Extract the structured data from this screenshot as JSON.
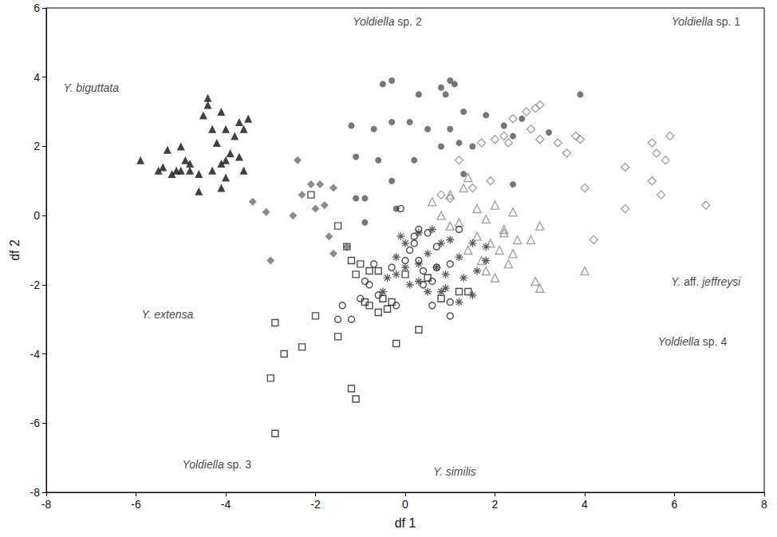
{
  "chart_data": {
    "type": "scatter",
    "xlabel": "df 1",
    "ylabel": "df 2",
    "xlim": [
      -8,
      8
    ],
    "ylim": [
      -8,
      6
    ],
    "xticks": [
      -8,
      -6,
      -4,
      -2,
      0,
      2,
      4,
      6,
      8
    ],
    "yticks": [
      -8,
      -6,
      -4,
      -2,
      0,
      2,
      4,
      6
    ],
    "grid": false,
    "series": [
      {
        "name": "Y. biguttata",
        "color": "#111111",
        "marker": "filled-triangle",
        "x": [
          -5.9,
          -5.5,
          -5.4,
          -5.2,
          -5.1,
          -5.0,
          -4.9,
          -4.8,
          -4.8,
          -5.3,
          -5.0,
          -4.6,
          -4.5,
          -4.4,
          -4.4,
          -4.3,
          -4.1,
          -4.2,
          -4.0,
          -4.3,
          -4.0,
          -3.9,
          -4.0,
          -3.7,
          -3.8,
          -3.6,
          -3.7,
          -3.6,
          -4.1,
          -4.6,
          -4.1,
          -3.5
        ],
        "y": [
          1.6,
          1.3,
          1.4,
          1.2,
          1.3,
          1.3,
          1.6,
          1.3,
          1.5,
          1.9,
          2.0,
          1.2,
          2.9,
          3.4,
          3.2,
          1.3,
          3.0,
          2.1,
          2.5,
          2.5,
          1.6,
          1.8,
          1.1,
          2.7,
          2.3,
          2.5,
          1.7,
          1.3,
          0.8,
          0.7,
          1.5,
          2.8
        ]
      },
      {
        "name": "Yoldiella sp. 2",
        "color": "#555555",
        "marker": "filled-circle",
        "x": [
          -0.5,
          -0.3,
          0.8,
          1.0,
          1.1,
          0.9,
          0.3,
          0.1,
          -0.3,
          -1.2,
          -0.7,
          0.5,
          0.8,
          1.0,
          1.3,
          1.8,
          2.2,
          2.6,
          2.4,
          3.2,
          1.5,
          -1.1,
          -0.6,
          0.2,
          -0.3,
          -1.1,
          -0.9,
          -0.9,
          -0.2,
          1.3,
          2.4,
          3.9,
          1.2
        ],
        "y": [
          3.8,
          3.9,
          3.7,
          3.9,
          3.8,
          3.5,
          3.5,
          2.7,
          2.7,
          2.6,
          2.5,
          2.5,
          2.0,
          2.5,
          3.0,
          2.9,
          2.6,
          2.8,
          2.3,
          2.4,
          2.0,
          1.7,
          1.6,
          1.6,
          1.0,
          0.5,
          0.5,
          -0.2,
          0.2,
          1.2,
          0.9,
          3.5,
          2.1
        ]
      },
      {
        "name": "Yoldiella sp. 1",
        "color": "#8c8c8c",
        "marker": "open-diamond",
        "x": [
          1.7,
          2.0,
          2.2,
          2.4,
          2.3,
          2.7,
          2.9,
          3.0,
          2.8,
          3.0,
          3.4,
          3.6,
          3.8,
          3.9,
          1.2,
          1.0,
          0.8,
          4.9,
          5.5,
          5.6,
          5.5,
          5.8,
          5.9,
          6.7,
          4.9,
          5.7,
          4.0,
          4.2,
          1.9,
          1.5
        ],
        "y": [
          2.1,
          2.2,
          2.3,
          2.8,
          2.1,
          3.0,
          3.1,
          3.2,
          2.5,
          2.2,
          2.1,
          1.8,
          2.3,
          2.2,
          1.6,
          0.5,
          0.6,
          1.4,
          2.1,
          1.8,
          1.0,
          1.6,
          2.3,
          0.3,
          0.2,
          0.6,
          0.8,
          -0.7,
          1.0,
          0.8
        ]
      },
      {
        "name": "Y. extensa",
        "color": "#6e6e6e",
        "marker": "filled-diamond",
        "x": [
          -3.4,
          -3.1,
          -3.0,
          -2.5,
          -2.4,
          -2.3,
          -2.1,
          -1.9,
          -1.6,
          -2.0,
          -1.7,
          -1.6,
          -1.3,
          -1.8
        ],
        "y": [
          0.4,
          0.1,
          -1.3,
          0.0,
          1.6,
          0.6,
          0.9,
          0.9,
          0.8,
          0.2,
          -0.6,
          -1.1,
          -0.9,
          0.3
        ]
      },
      {
        "name": "Y. aff. jeffreysi",
        "color": "#8c8c8c",
        "marker": "open-triangle",
        "x": [
          1.0,
          1.3,
          1.4,
          2.0,
          2.4,
          1.8,
          2.2,
          2.5,
          1.9,
          1.6,
          1.0,
          0.8,
          0.6,
          1.4,
          1.7,
          2.1,
          2.4,
          2.3,
          2.0,
          1.8,
          2.9,
          3.0,
          2.8,
          3.0,
          1.6,
          2.2,
          4.0,
          1.2
        ],
        "y": [
          0.6,
          0.8,
          1.1,
          0.3,
          0.1,
          -0.1,
          -0.4,
          -0.7,
          -0.8,
          -0.6,
          -0.3,
          0.0,
          0.4,
          -1.0,
          -1.3,
          -1.0,
          -1.1,
          -1.4,
          -1.8,
          -1.6,
          -1.9,
          -2.1,
          -0.7,
          -0.3,
          0.2,
          -0.5,
          -1.6,
          -0.2
        ]
      },
      {
        "name": "Yoldiella sp. 3",
        "color": "#222222",
        "marker": "open-square",
        "x": [
          -2.1,
          -1.5,
          -1.3,
          -1.2,
          -1.0,
          -0.8,
          -0.6,
          -1.1,
          -0.9,
          -0.8,
          -0.5,
          -0.3,
          -0.4,
          0.0,
          -0.2,
          0.3,
          0.8,
          1.4,
          1.2,
          -1.5,
          -2.0,
          -2.3,
          -2.7,
          -2.9,
          -3.0,
          -2.9,
          -1.2,
          -1.1,
          -0.6,
          0.5
        ],
        "y": [
          0.6,
          -0.3,
          -0.9,
          -1.3,
          -1.4,
          -1.6,
          -1.6,
          -1.7,
          -2.5,
          -2.6,
          -2.4,
          -2.5,
          -2.7,
          -1.7,
          -3.7,
          -3.3,
          -2.4,
          -2.2,
          -2.2,
          -3.5,
          -2.9,
          -3.8,
          -4.0,
          -3.1,
          -4.7,
          -6.3,
          -5.0,
          -5.3,
          -2.8,
          -1.8
        ]
      },
      {
        "name": "Y. similis",
        "color": "#222222",
        "marker": "open-circle",
        "x": [
          -0.1,
          0.3,
          0.5,
          0.7,
          0.2,
          0.0,
          0.3,
          0.4,
          0.6,
          0.4,
          0.7,
          0.1,
          0.2,
          -0.3,
          -0.7,
          -0.9,
          -0.8,
          -0.6,
          -0.2,
          -1.0,
          -1.4,
          -1.2,
          -1.5,
          1.0,
          1.0,
          0.6,
          1.0,
          1.2
        ],
        "y": [
          0.2,
          -0.4,
          -0.5,
          -0.9,
          -0.8,
          -1.3,
          -1.3,
          -1.6,
          -1.9,
          -2.0,
          -1.5,
          -1.0,
          -0.6,
          -1.5,
          -1.4,
          -1.9,
          -2.0,
          -2.3,
          -2.6,
          -2.4,
          -2.6,
          -3.0,
          -3.0,
          -2.5,
          -2.9,
          -2.6,
          -1.4,
          -0.4
        ]
      },
      {
        "name": "Yoldiella sp. 4",
        "color": "#333333",
        "marker": "asterisk",
        "x": [
          -0.1,
          0.0,
          0.3,
          0.6,
          0.8,
          1.0,
          0.5,
          0.0,
          -0.2,
          -0.4,
          0.1,
          0.3,
          0.7,
          0.9,
          0.9,
          1.2,
          1.5,
          1.6,
          1.2,
          1.8,
          1.8,
          1.5,
          1.3,
          0.5,
          -0.5,
          0.8,
          -0.2,
          0.3
        ],
        "y": [
          -0.6,
          -0.8,
          -0.5,
          -0.4,
          -0.8,
          -0.7,
          -1.1,
          -1.5,
          -1.7,
          -1.8,
          -2.0,
          -1.4,
          -1.5,
          -1.7,
          -2.1,
          -2.5,
          -2.3,
          -1.6,
          -1.2,
          -1.3,
          -0.9,
          -0.8,
          -1.8,
          -2.2,
          -2.2,
          -2.2,
          -1.2,
          -1.9
        ]
      }
    ]
  }
}
